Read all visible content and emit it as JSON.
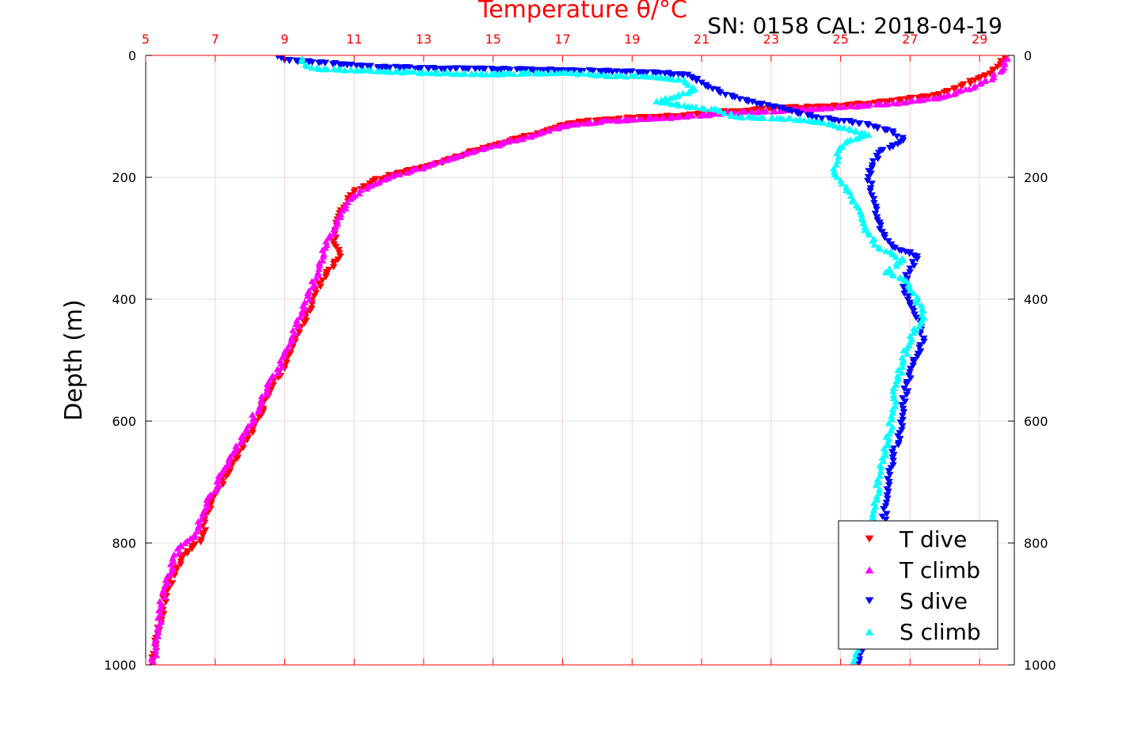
{
  "colors": {
    "t_dive": "#ff0000",
    "t_climb": "#ff00ff",
    "s_dive": "#0000ff",
    "s_climb": "#00ffff",
    "top_axis": "#ff0000",
    "grid": "#dddddd"
  },
  "annotation": "SN: 0158  CAL: 2018-04-19",
  "chart_data": {
    "type": "scatter",
    "title": "Temperature θ/°C",
    "xlabel": "Temperature θ/°C",
    "ylabel": "Depth (m)",
    "xlim": [
      5,
      30
    ],
    "ylim": [
      0,
      1000
    ],
    "y_inverted": true,
    "x_ticks": [
      "5",
      "7",
      "9",
      "11",
      "13",
      "15",
      "17",
      "19",
      "21",
      "23",
      "25",
      "27",
      "29"
    ],
    "y_ticks": [
      "0",
      "200",
      "400",
      "600",
      "800",
      "1000"
    ],
    "grid": true,
    "legend_position": "bottom-right",
    "series": [
      {
        "name": "T dive",
        "marker": "triangle-down",
        "color": "#ff0000",
        "points": [
          [
            29.8,
            0
          ],
          [
            29.6,
            15
          ],
          [
            29.3,
            30
          ],
          [
            28.5,
            50
          ],
          [
            27.8,
            65
          ],
          [
            26.9,
            72
          ],
          [
            26.0,
            78
          ],
          [
            25.2,
            82
          ],
          [
            24.2,
            85
          ],
          [
            23.0,
            88
          ],
          [
            22.0,
            92
          ],
          [
            21.0,
            95
          ],
          [
            20.2,
            100
          ],
          [
            19.0,
            103
          ],
          [
            18.0,
            107
          ],
          [
            17.2,
            112
          ],
          [
            16.5,
            125
          ],
          [
            15.5,
            140
          ],
          [
            14.3,
            160
          ],
          [
            13.3,
            180
          ],
          [
            12.4,
            192
          ],
          [
            11.6,
            205
          ],
          [
            11.0,
            225
          ],
          [
            10.7,
            250
          ],
          [
            10.5,
            280
          ],
          [
            10.4,
            305
          ],
          [
            10.6,
            330
          ],
          [
            10.2,
            360
          ],
          [
            9.9,
            390
          ],
          [
            9.6,
            430
          ],
          [
            9.3,
            470
          ],
          [
            9.0,
            510
          ],
          [
            8.6,
            550
          ],
          [
            8.2,
            600
          ],
          [
            7.7,
            650
          ],
          [
            7.2,
            700
          ],
          [
            6.8,
            750
          ],
          [
            6.6,
            795
          ],
          [
            6.1,
            820
          ],
          [
            5.8,
            850
          ],
          [
            5.6,
            880
          ],
          [
            5.5,
            910
          ],
          [
            5.35,
            950
          ],
          [
            5.2,
            1000
          ]
        ]
      },
      {
        "name": "T climb",
        "marker": "triangle-up",
        "color": "#ff00ff",
        "points": [
          [
            29.8,
            5
          ],
          [
            29.7,
            20
          ],
          [
            29.4,
            35
          ],
          [
            28.7,
            55
          ],
          [
            27.9,
            68
          ],
          [
            27.0,
            75
          ],
          [
            26.1,
            80
          ],
          [
            25.3,
            83
          ],
          [
            24.3,
            87
          ],
          [
            23.1,
            90
          ],
          [
            22.1,
            94
          ],
          [
            21.1,
            97
          ],
          [
            20.3,
            101
          ],
          [
            19.2,
            104
          ],
          [
            18.1,
            108
          ],
          [
            17.0,
            115
          ],
          [
            16.2,
            130
          ],
          [
            15.2,
            145
          ],
          [
            14.0,
            165
          ],
          [
            13.0,
            183
          ],
          [
            12.1,
            198
          ],
          [
            11.4,
            215
          ],
          [
            10.9,
            235
          ],
          [
            10.6,
            265
          ],
          [
            10.3,
            295
          ],
          [
            10.0,
            340
          ],
          [
            9.8,
            380
          ],
          [
            9.5,
            420
          ],
          [
            9.2,
            465
          ],
          [
            8.9,
            505
          ],
          [
            8.5,
            545
          ],
          [
            8.1,
            595
          ],
          [
            7.6,
            645
          ],
          [
            7.1,
            695
          ],
          [
            6.7,
            745
          ],
          [
            6.4,
            790
          ],
          [
            6.0,
            805
          ],
          [
            5.8,
            830
          ],
          [
            5.55,
            870
          ],
          [
            5.45,
            900
          ],
          [
            5.35,
            940
          ],
          [
            5.3,
            970
          ],
          [
            5.2,
            995
          ]
        ]
      },
      {
        "name": "S dive",
        "marker": "triangle-down",
        "color": "#0000ff",
        "points": [
          [
            8.8,
            2
          ],
          [
            9.0,
            8
          ],
          [
            10.7,
            15
          ],
          [
            11.8,
            20
          ],
          [
            17.1,
            25
          ],
          [
            19.3,
            28
          ],
          [
            20.6,
            32
          ],
          [
            21.0,
            45
          ],
          [
            21.5,
            60
          ],
          [
            22.1,
            72
          ],
          [
            22.9,
            82
          ],
          [
            23.6,
            92
          ],
          [
            24.3,
            102
          ],
          [
            25.1,
            108
          ],
          [
            25.8,
            115
          ],
          [
            26.5,
            125
          ],
          [
            26.8,
            140
          ],
          [
            26.1,
            160
          ],
          [
            25.9,
            185
          ],
          [
            25.8,
            200
          ],
          [
            25.9,
            230
          ],
          [
            26.0,
            260
          ],
          [
            26.2,
            290
          ],
          [
            26.5,
            315
          ],
          [
            27.2,
            330
          ],
          [
            27.0,
            350
          ],
          [
            26.8,
            380
          ],
          [
            27.0,
            410
          ],
          [
            27.3,
            440
          ],
          [
            27.4,
            470
          ],
          [
            27.1,
            500
          ],
          [
            26.9,
            540
          ],
          [
            26.8,
            580
          ],
          [
            26.7,
            620
          ],
          [
            26.5,
            660
          ],
          [
            26.4,
            700
          ],
          [
            26.3,
            740
          ],
          [
            26.2,
            780
          ],
          [
            26.1,
            820
          ],
          [
            26.0,
            860
          ],
          [
            25.9,
            900
          ],
          [
            25.8,
            940
          ],
          [
            25.6,
            980
          ],
          [
            25.5,
            1000
          ]
        ]
      },
      {
        "name": "S climb",
        "marker": "triangle-up",
        "color": "#00ffff",
        "points": [
          [
            9.5,
            5
          ],
          [
            9.6,
            15
          ],
          [
            10.0,
            22
          ],
          [
            11.5,
            25
          ],
          [
            13.1,
            28
          ],
          [
            14.8,
            30
          ],
          [
            17.1,
            28
          ],
          [
            18.0,
            32
          ],
          [
            19.8,
            35
          ],
          [
            20.5,
            40
          ],
          [
            20.8,
            55
          ],
          [
            20.2,
            68
          ],
          [
            19.7,
            75
          ],
          [
            20.5,
            82
          ],
          [
            21.5,
            90
          ],
          [
            22.0,
            100
          ],
          [
            23.5,
            103
          ],
          [
            24.5,
            110
          ],
          [
            25.3,
            122
          ],
          [
            25.8,
            130
          ],
          [
            25.2,
            140
          ],
          [
            24.9,
            160
          ],
          [
            24.8,
            185
          ],
          [
            25.0,
            205
          ],
          [
            25.3,
            230
          ],
          [
            25.6,
            260
          ],
          [
            25.8,
            290
          ],
          [
            26.1,
            315
          ],
          [
            26.8,
            335
          ],
          [
            26.3,
            355
          ],
          [
            26.9,
            370
          ],
          [
            27.2,
            400
          ],
          [
            27.4,
            430
          ],
          [
            27.0,
            460
          ],
          [
            26.8,
            500
          ],
          [
            26.6,
            540
          ],
          [
            26.5,
            580
          ],
          [
            26.4,
            620
          ],
          [
            26.2,
            660
          ],
          [
            26.1,
            700
          ],
          [
            26.0,
            740
          ],
          [
            25.9,
            780
          ],
          [
            25.8,
            820
          ],
          [
            25.7,
            860
          ],
          [
            25.7,
            900
          ],
          [
            25.6,
            940
          ],
          [
            25.5,
            975
          ],
          [
            25.4,
            1000
          ]
        ]
      }
    ]
  }
}
